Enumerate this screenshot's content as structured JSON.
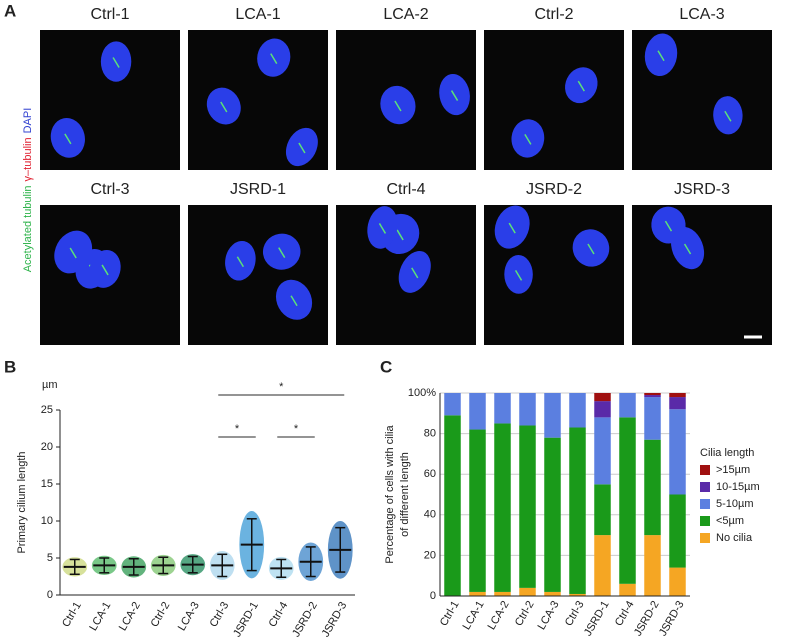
{
  "panel_a": {
    "letter": "A",
    "stain_label": [
      {
        "text": "Acetylated tubulin",
        "color": "#2db34a"
      },
      {
        "text": "γ–tubulin",
        "color": "#e02030"
      },
      {
        "text": "DAPI",
        "color": "#3040d0"
      }
    ],
    "tiles": [
      {
        "label": "Ctrl-1",
        "color": "#222222"
      },
      {
        "label": "LCA-1",
        "color": "#e02a34"
      },
      {
        "label": "LCA-2",
        "color": "#e02a34"
      },
      {
        "label": "Ctrl-2",
        "color": "#222222"
      },
      {
        "label": "LCA-3",
        "color": "#e02a34"
      },
      {
        "label": "Ctrl-3",
        "color": "#222222"
      },
      {
        "label": "JSRD-1",
        "color": "#e02a34"
      },
      {
        "label": "Ctrl-4",
        "color": "#222222"
      },
      {
        "label": "JSRD-2",
        "color": "#e02a34"
      },
      {
        "label": "JSRD-3",
        "color": "#e02a34"
      }
    ]
  },
  "chart_data": [
    {
      "type": "dot-errorbar",
      "letter": "B",
      "unit": "µm",
      "y_label": "Primary cilium length",
      "categories": [
        "Ctrl-1",
        "LCA-1",
        "LCA-2",
        "Ctrl-2",
        "LCA-3",
        "Ctrl-3",
        "JSRD-1",
        "Ctrl-4",
        "JSRD-2",
        "JSRD-3"
      ],
      "category_colors": [
        "#222222",
        "#e02a34",
        "#e02a34",
        "#222222",
        "#e02a34",
        "#222222",
        "#e02a34",
        "#222222",
        "#e02a34",
        "#e02a34"
      ],
      "colors": [
        "#c9d77a",
        "#4cb560",
        "#2e9a52",
        "#7cc46c",
        "#1e8a5a",
        "#a8d4ec",
        "#3a9ad6",
        "#a8d8ee",
        "#3e86c8",
        "#2a6fb6"
      ],
      "values": [
        3.8,
        4.0,
        3.8,
        4.0,
        4.1,
        4.0,
        6.8,
        3.6,
        4.5,
        6.1
      ],
      "errors": [
        1.0,
        1.0,
        1.1,
        1.1,
        1.1,
        1.5,
        3.5,
        1.2,
        2.0,
        3.0
      ],
      "ylim": [
        0,
        25
      ],
      "yticks": [
        0,
        5,
        10,
        15,
        20,
        25
      ],
      "annotations": [
        "*",
        "*",
        "*"
      ]
    },
    {
      "type": "stacked-bar",
      "letter": "C",
      "y_label": [
        "Percentage of cells with cilia",
        "of different length"
      ],
      "legend_title": "Cilia length",
      "categories": [
        "Ctrl-1",
        "LCA-1",
        "LCA-2",
        "Ctrl-2",
        "LCA-3",
        "Ctrl-3",
        "JSRD-1",
        "Ctrl-4",
        "JSRD-2",
        "JSRD-3"
      ],
      "category_colors": [
        "#222222",
        "#e02a34",
        "#e02a34",
        "#222222",
        "#e02a34",
        "#222222",
        "#e02a34",
        "#222222",
        "#e02a34",
        "#e02a34"
      ],
      "series": [
        {
          "name": "No cilia",
          "color": "#f5a623",
          "values": [
            0,
            2,
            2,
            4,
            2,
            1,
            30,
            6,
            30,
            14
          ]
        },
        {
          "name": "<5µm",
          "color": "#1a9a1a",
          "values": [
            89,
            80,
            83,
            80,
            76,
            82,
            25,
            82,
            47,
            36
          ]
        },
        {
          "name": "5-10µm",
          "color": "#5b7fe0",
          "values": [
            11,
            18,
            15,
            16,
            22,
            17,
            33,
            12,
            21,
            42
          ]
        },
        {
          "name": "10-15µm",
          "color": "#5a2aa8",
          "values": [
            0,
            0,
            0,
            0,
            0,
            0,
            8,
            0,
            1,
            6
          ]
        },
        {
          "name": ">15µm",
          "color": "#a01010",
          "values": [
            0,
            0,
            0,
            0,
            0,
            0,
            4,
            0,
            1,
            2
          ]
        }
      ],
      "ylim": [
        0,
        100
      ],
      "yticks": [
        0,
        20,
        40,
        60,
        80,
        {
          "value": 100,
          "label": "100%"
        }
      ],
      "grid": true
    }
  ]
}
